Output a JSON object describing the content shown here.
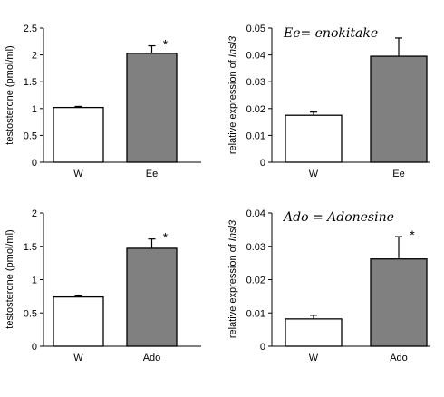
{
  "chart_data": [
    {
      "type": "bar",
      "categories": [
        "W",
        "Ee"
      ],
      "values": [
        1.02,
        2.03
      ],
      "errors": [
        0.02,
        0.14
      ],
      "bar_colors": [
        "#ffffff",
        "#808080"
      ],
      "ylabel": "testosterone (pmol/ml)",
      "ylim": [
        0,
        2.5
      ],
      "yticks": [
        "0",
        "0.5",
        "1",
        "1.5",
        "2",
        "2.5"
      ],
      "significance": [
        "",
        "*"
      ],
      "annotation": ""
    },
    {
      "type": "bar",
      "categories": [
        "W",
        "Ee"
      ],
      "values": [
        0.0175,
        0.0395
      ],
      "errors": [
        0.0012,
        0.0068
      ],
      "bar_colors": [
        "#ffffff",
        "#808080"
      ],
      "ylabel_prefix": "relative expression of ",
      "ylabel_italic": "Insl3",
      "ylim": [
        0,
        0.05
      ],
      "yticks": [
        "0",
        "0.01",
        "0.02",
        "0.03",
        "0.04",
        "0.05"
      ],
      "significance": [
        "",
        ""
      ],
      "annotation": "Ee= enokitake"
    },
    {
      "type": "bar",
      "categories": [
        "W",
        "Ado"
      ],
      "values": [
        0.74,
        1.47
      ],
      "errors": [
        0.015,
        0.14
      ],
      "bar_colors": [
        "#ffffff",
        "#808080"
      ],
      "ylabel": "testosterone (pmol/ml)",
      "ylim": [
        0,
        2
      ],
      "yticks": [
        "0",
        "0.5",
        "1",
        "1.5",
        "2"
      ],
      "significance": [
        "",
        "*"
      ],
      "annotation": ""
    },
    {
      "type": "bar",
      "categories": [
        "W",
        "Ado"
      ],
      "values": [
        0.0082,
        0.0262
      ],
      "errors": [
        0.0011,
        0.0067
      ],
      "bar_colors": [
        "#ffffff",
        "#808080"
      ],
      "ylabel_prefix": "relative expression of ",
      "ylabel_italic": "Insl3",
      "ylim": [
        0,
        0.04
      ],
      "yticks": [
        "0",
        "0.01",
        "0.02",
        "0.03",
        "0.04"
      ],
      "significance": [
        "",
        "*"
      ],
      "annotation": "Ado = Adonesine"
    }
  ]
}
